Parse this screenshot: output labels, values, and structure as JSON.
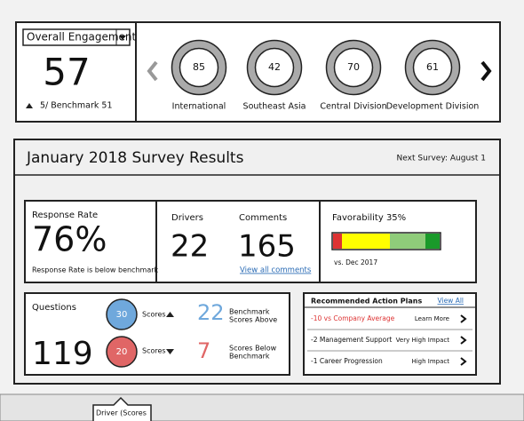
{
  "selector": "Overall Engagement",
  "score": 57,
  "benchmark": "5/ Benchmark 51",
  "regions": [
    {
      "label": "International",
      "score": 85
    },
    {
      "label": "Southeast Asia",
      "score": 42
    },
    {
      "label": "Central Division",
      "score": 70
    },
    {
      "label": "Development Division",
      "score": 61
    }
  ],
  "survey": {
    "title": "January 2018 Survey Results",
    "next": "Next Survey: August 1"
  },
  "response": {
    "label": "Response Rate",
    "value": "76%",
    "note": "Response Rate is below benchmark"
  },
  "drivers": {
    "label": "Drivers",
    "value": 22
  },
  "comments": {
    "label": "Comments",
    "value": 165,
    "link": "View all comments"
  },
  "favorability": {
    "label": "Favorability 35%",
    "note": "vs. Dec 2017"
  },
  "questions": {
    "label": "Questions",
    "value": 119,
    "up": {
      "count": 30,
      "label": "Scores"
    },
    "down": {
      "count": 20,
      "label": "Scores"
    },
    "above": {
      "count": 22,
      "label": [
        "Benchmark",
        "Scores Above"
      ]
    },
    "below": {
      "count": 7,
      "label": [
        "Scores Below",
        "Benchmark"
      ]
    }
  },
  "actions": {
    "title": "Recommended Action Plans",
    "link": "View All",
    "rows": [
      {
        "item": "-10 vs Company Average",
        "action": "Learn More"
      },
      {
        "item": "-2 Management Support",
        "action": "Very High Impact"
      },
      {
        "item": "-1 Career Progression",
        "action": "High Impact"
      }
    ]
  },
  "tooltip": "Driver (Scores"
}
